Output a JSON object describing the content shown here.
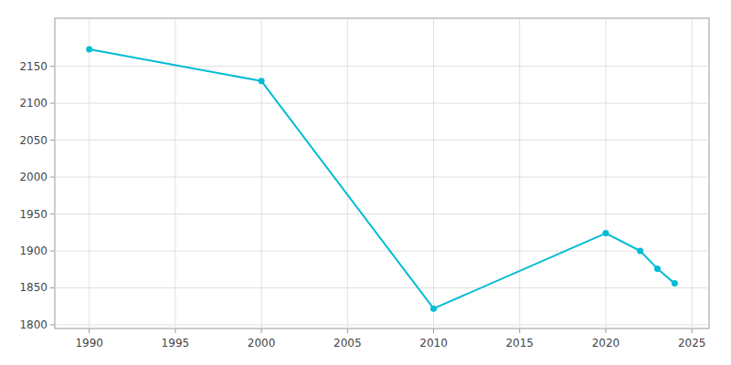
{
  "chart_data": {
    "type": "line",
    "x": [
      1990,
      2000,
      2010,
      2020,
      2022,
      2023,
      2024
    ],
    "values": [
      2173,
      2130,
      1822,
      1924,
      1900,
      1876,
      1856
    ],
    "color": "#00bcd4",
    "marker": "circle",
    "xlim": [
      1988,
      2026
    ],
    "ylim": [
      1795,
      2215
    ],
    "xticks": [
      1990,
      1995,
      2000,
      2005,
      2010,
      2015,
      2020,
      2025
    ],
    "yticks": [
      1800,
      1850,
      1900,
      1950,
      2000,
      2050,
      2100,
      2150
    ],
    "grid": true
  }
}
